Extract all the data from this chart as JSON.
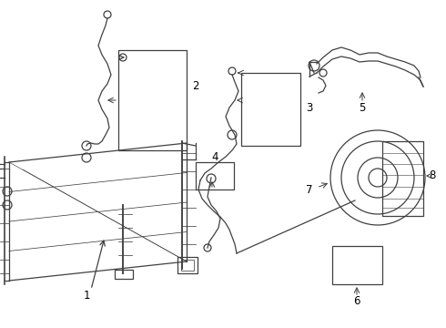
{
  "background_color": "#ffffff",
  "line_color": "#404040",
  "lw": 0.9
}
